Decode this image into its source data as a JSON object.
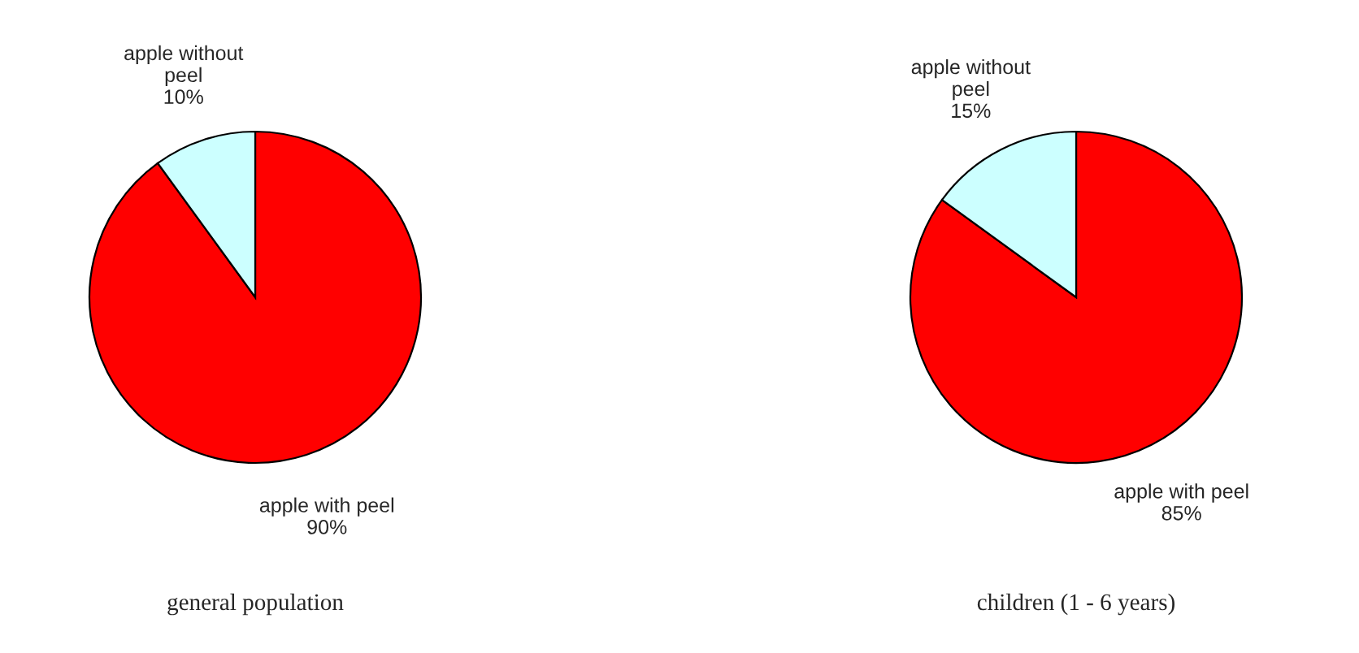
{
  "chart_data": [
    {
      "type": "pie",
      "title": "general population",
      "categories": [
        "apple with peel",
        "apple without peel"
      ],
      "values": [
        90,
        10
      ],
      "value_labels": [
        "90%",
        "10%"
      ],
      "colors": [
        "#ff0000",
        "#ccffff"
      ]
    },
    {
      "type": "pie",
      "title": "children (1 - 6 years)",
      "categories": [
        "apple with peel",
        "apple without peel"
      ],
      "values": [
        85,
        15
      ],
      "value_labels": [
        "85%",
        "15%"
      ],
      "colors": [
        "#ff0000",
        "#ccffff"
      ]
    }
  ]
}
